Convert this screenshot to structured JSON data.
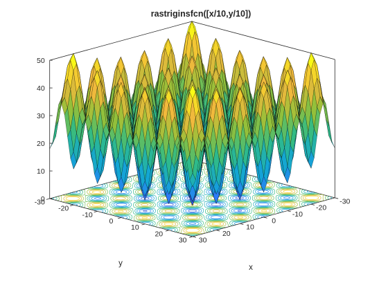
{
  "chart_data": {
    "type": "surface",
    "title": "rastriginsfcn([x/10,y/10])",
    "function": "rastriginsfcn([x/10,y/10])",
    "xlabel": "x",
    "ylabel": "y",
    "zlabel": "",
    "xlim": [
      -30,
      30
    ],
    "ylim": [
      -30,
      30
    ],
    "zlim": [
      0,
      50
    ],
    "x_ticks": [
      "-30",
      "-20",
      "-10",
      "0",
      "10",
      "20",
      "30"
    ],
    "y_ticks": [
      "-30",
      "-20",
      "-10",
      "0",
      "10",
      "20",
      "30"
    ],
    "z_ticks": [
      "0",
      "10",
      "20",
      "30",
      "40",
      "50"
    ],
    "grid": false,
    "colormap": [
      "#3e26a8",
      "#2c7bf6",
      "#13a6d4",
      "#30bb86",
      "#95c039",
      "#f2b93c",
      "#f9fb15"
    ],
    "edge_color": "#000000",
    "contour_levels": [
      5,
      10,
      15,
      20,
      25,
      30,
      35,
      40,
      45
    ],
    "z_min_observed": 0,
    "z_max_observed": 50
  }
}
